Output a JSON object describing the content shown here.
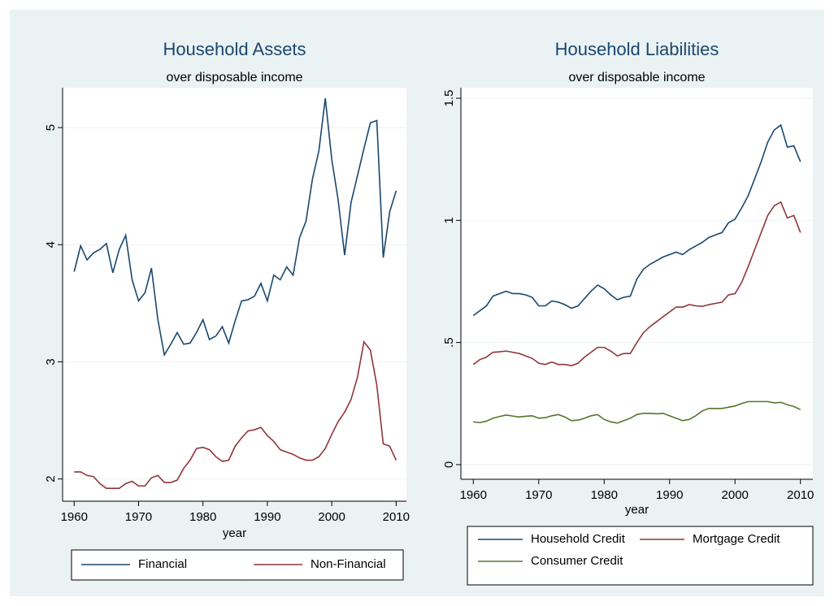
{
  "chart_data": [
    {
      "type": "line",
      "title": "Household Assets",
      "subtitle": "over disposable income",
      "x_label": "year",
      "x": [
        1960,
        1961,
        1962,
        1963,
        1964,
        1965,
        1966,
        1967,
        1968,
        1969,
        1970,
        1971,
        1972,
        1973,
        1974,
        1975,
        1976,
        1977,
        1978,
        1979,
        1980,
        1981,
        1982,
        1983,
        1984,
        1985,
        1986,
        1987,
        1988,
        1989,
        1990,
        1991,
        1992,
        1993,
        1994,
        1995,
        1996,
        1997,
        1998,
        1999,
        2000,
        2001,
        2002,
        2003,
        2004,
        2005,
        2006,
        2007,
        2008,
        2009,
        2010
      ],
      "series": [
        {
          "name": "Financial",
          "color": "#1a476f",
          "values": [
            3.77,
            3.99,
            3.87,
            3.93,
            3.96,
            4.01,
            3.76,
            3.96,
            4.08,
            3.7,
            3.52,
            3.59,
            3.8,
            3.36,
            3.06,
            3.15,
            3.25,
            3.15,
            3.16,
            3.25,
            3.36,
            3.19,
            3.22,
            3.3,
            3.16,
            3.35,
            3.52,
            3.53,
            3.56,
            3.67,
            3.52,
            3.74,
            3.7,
            3.81,
            3.74,
            4.06,
            4.2,
            4.56,
            4.8,
            5.25,
            4.73,
            4.38,
            3.91,
            4.36,
            4.59,
            4.82,
            5.04,
            5.06,
            3.89,
            4.28,
            4.46
          ]
        },
        {
          "name": "Non-Financial",
          "color": "#90353b",
          "values": [
            2.06,
            2.06,
            2.03,
            2.02,
            1.96,
            1.92,
            1.92,
            1.92,
            1.96,
            1.98,
            1.94,
            1.94,
            2.01,
            2.03,
            1.97,
            1.97,
            1.99,
            2.09,
            2.16,
            2.26,
            2.27,
            2.25,
            2.19,
            2.15,
            2.16,
            2.28,
            2.35,
            2.41,
            2.42,
            2.44,
            2.37,
            2.32,
            2.25,
            2.23,
            2.21,
            2.18,
            2.16,
            2.16,
            2.19,
            2.26,
            2.38,
            2.49,
            2.57,
            2.68,
            2.87,
            3.17,
            3.1,
            2.8,
            2.3,
            2.28,
            2.16
          ]
        }
      ],
      "xlim": [
        1958.2,
        2011.6
      ],
      "xticks": [
        1960,
        1970,
        1980,
        1990,
        2000,
        2010
      ],
      "ylim": [
        1.81,
        5.34
      ],
      "yticks": [
        2,
        3,
        4,
        5
      ],
      "grid": true
    },
    {
      "type": "line",
      "title": "Household Liabilities",
      "subtitle": "over disposable income",
      "x_label": "year",
      "x": [
        1960,
        1961,
        1962,
        1963,
        1964,
        1965,
        1966,
        1967,
        1968,
        1969,
        1970,
        1971,
        1972,
        1973,
        1974,
        1975,
        1976,
        1977,
        1978,
        1979,
        1980,
        1981,
        1982,
        1983,
        1984,
        1985,
        1986,
        1987,
        1988,
        1989,
        1990,
        1991,
        1992,
        1993,
        1994,
        1995,
        1996,
        1997,
        1998,
        1999,
        2000,
        2001,
        2002,
        2003,
        2004,
        2005,
        2006,
        2007,
        2008,
        2009,
        2010
      ],
      "series": [
        {
          "name": "Household Credit",
          "color": "#1a476f",
          "values": [
            0.61,
            0.63,
            0.65,
            0.69,
            0.7,
            0.71,
            0.7,
            0.7,
            0.695,
            0.685,
            0.65,
            0.65,
            0.67,
            0.665,
            0.655,
            0.64,
            0.65,
            0.68,
            0.71,
            0.735,
            0.72,
            0.695,
            0.675,
            0.685,
            0.69,
            0.76,
            0.8,
            0.82,
            0.835,
            0.85,
            0.86,
            0.87,
            0.86,
            0.88,
            0.895,
            0.91,
            0.93,
            0.94,
            0.95,
            0.99,
            1.005,
            1.05,
            1.1,
            1.17,
            1.24,
            1.32,
            1.37,
            1.39,
            1.3,
            1.305,
            1.24
          ]
        },
        {
          "name": "Mortgage Credit",
          "color": "#90353b",
          "values": [
            0.41,
            0.43,
            0.44,
            0.46,
            0.462,
            0.465,
            0.46,
            0.455,
            0.445,
            0.435,
            0.415,
            0.41,
            0.42,
            0.41,
            0.41,
            0.405,
            0.415,
            0.44,
            0.46,
            0.48,
            0.48,
            0.465,
            0.445,
            0.455,
            0.455,
            0.5,
            0.54,
            0.565,
            0.585,
            0.605,
            0.625,
            0.645,
            0.645,
            0.655,
            0.65,
            0.648,
            0.655,
            0.66,
            0.665,
            0.695,
            0.7,
            0.745,
            0.81,
            0.88,
            0.95,
            1.02,
            1.06,
            1.075,
            1.01,
            1.02,
            0.95
          ]
        },
        {
          "name": "Consumer Credit",
          "color": "#55752f",
          "values": [
            0.175,
            0.172,
            0.178,
            0.19,
            0.197,
            0.203,
            0.199,
            0.195,
            0.198,
            0.2,
            0.19,
            0.192,
            0.2,
            0.205,
            0.195,
            0.18,
            0.182,
            0.19,
            0.2,
            0.205,
            0.185,
            0.175,
            0.17,
            0.18,
            0.19,
            0.205,
            0.21,
            0.21,
            0.208,
            0.21,
            0.2,
            0.19,
            0.18,
            0.185,
            0.2,
            0.22,
            0.23,
            0.23,
            0.23,
            0.235,
            0.24,
            0.25,
            0.258,
            0.258,
            0.258,
            0.258,
            0.253,
            0.255,
            0.245,
            0.238,
            0.225
          ]
        }
      ],
      "xlim": [
        1958.1,
        2011.9
      ],
      "xticks": [
        1960,
        1970,
        1980,
        1990,
        2000,
        2010
      ],
      "ylim": [
        -0.06,
        1.543
      ],
      "yticks": [
        0,
        {
          "value": 0.5,
          "label": ".5"
        },
        1,
        1.5
      ],
      "grid": true
    }
  ]
}
